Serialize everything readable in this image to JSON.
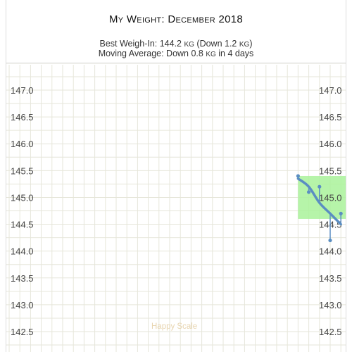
{
  "header": {
    "title": "My Weight: December 2018",
    "best_line": {
      "prefix": "Best Weigh-In: 144.2 ",
      "unit1": "kg",
      "mid": " (Down 1.2 ",
      "unit2": "kg",
      "suffix": ")"
    },
    "avg_line": {
      "prefix": "Moving Average: Down 0.8 ",
      "unit": "kg",
      "suffix": " in 4 days"
    }
  },
  "watermark": "Happy Scale",
  "colors": {
    "grid": "#e6e6da",
    "line": "#5b8ec2",
    "goal_band": "#a9f29a"
  },
  "chart_data": {
    "type": "line",
    "title": "My Weight: December 2018",
    "xlabel": "",
    "ylabel": "",
    "ylim": [
      142.3,
      147.5
    ],
    "yticks": [
      "147.0",
      "146.5",
      "146.0",
      "145.5",
      "145.0",
      "144.5",
      "144.0",
      "143.5",
      "143.0",
      "142.5"
    ],
    "x_days": 31,
    "goal_band": {
      "day_start": 28,
      "day_end": 31,
      "ymin": 144.6,
      "ymax": 145.4
    },
    "weigh_ins": [
      {
        "day": 28,
        "value": 145.4
      },
      {
        "day": 29,
        "value": 145.1
      },
      {
        "day": 30,
        "value": 145.2
      },
      {
        "day": 31,
        "value": 144.2
      },
      {
        "day": 32,
        "value": 144.7
      }
    ],
    "moving_average": [
      {
        "day": 28,
        "value": 145.35
      },
      {
        "day": 29,
        "value": 145.2
      },
      {
        "day": 30,
        "value": 144.9
      },
      {
        "day": 31,
        "value": 144.7
      },
      {
        "day": 32,
        "value": 144.5
      }
    ]
  }
}
